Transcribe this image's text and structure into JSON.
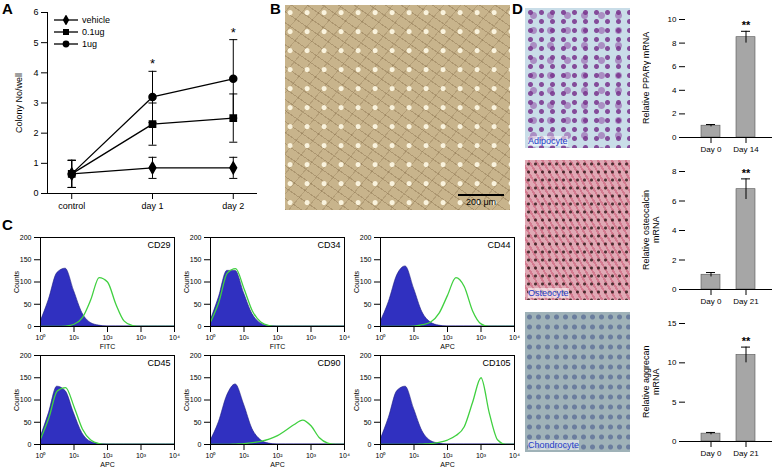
{
  "panel_labels": [
    "A",
    "B",
    "C",
    "D"
  ],
  "chart_data": [
    {
      "type": "line",
      "categories": [
        "control",
        "day 1",
        "day 2"
      ],
      "ylabel": "Colony No/well",
      "ylim": [
        0,
        6
      ],
      "yticks": [
        0,
        1,
        2,
        3,
        4,
        5,
        6
      ],
      "legend": "top-left",
      "series": [
        {
          "name": "vehicle",
          "color": "#000000",
          "marker": "diamond",
          "values": [
            0.65,
            0.85,
            0.85
          ],
          "errors": [
            0.45,
            0.35,
            0.35
          ]
        },
        {
          "name": "0.1ug",
          "color": "#000000",
          "marker": "square",
          "values": [
            0.65,
            2.3,
            2.5
          ],
          "errors": [
            0.45,
            0.7,
            0.8
          ]
        },
        {
          "name": "1ug",
          "color": "#000000",
          "marker": "circle",
          "values": [
            0.65,
            3.2,
            3.8
          ],
          "errors": [
            0.45,
            0.85,
            1.3
          ]
        }
      ],
      "annotations": [
        {
          "category": "day 1",
          "text": "*"
        },
        {
          "category": "day 2",
          "text": "*"
        }
      ]
    },
    {
      "type": "area",
      "title": "CD29",
      "xlabel": "FITC",
      "ylabel": "Counts",
      "log": "x",
      "x": [
        1,
        1.78,
        3.16,
        5.62,
        10,
        17.8,
        31.6,
        56.2,
        100,
        178,
        316,
        562,
        1000,
        1778,
        3162,
        5623,
        10000
      ],
      "xlim": [
        1,
        10000
      ],
      "xticks": [
        {
          "value": 1,
          "label": "10⁰"
        },
        {
          "value": 10,
          "label": "10¹"
        },
        {
          "value": 100,
          "label": "10²"
        },
        {
          "value": 1000,
          "label": "10³"
        },
        {
          "value": 10000,
          "label": "10⁴"
        }
      ],
      "ylim": [
        0,
        200
      ],
      "yticks": [
        0,
        50,
        100,
        150,
        200
      ],
      "series": [
        {
          "type": "area",
          "color": "#3030c0",
          "values": [
            10,
            60,
            120,
            130,
            80,
            30,
            8,
            2,
            0,
            0,
            0,
            0,
            0,
            0,
            0,
            0,
            0
          ]
        },
        {
          "type": "line",
          "color": "#40d040",
          "values": [
            0,
            0,
            0,
            1,
            5,
            20,
            60,
            110,
            100,
            50,
            12,
            2,
            0,
            0,
            0,
            0,
            0
          ]
        }
      ]
    },
    {
      "type": "area",
      "title": "CD34",
      "xlabel": "FITC",
      "ylabel": "Counts",
      "log": "x",
      "x": [
        1,
        1.78,
        3.16,
        5.62,
        10,
        17.8,
        31.6,
        56.2,
        100,
        178,
        316,
        562,
        1000,
        1778,
        3162,
        5623,
        10000
      ],
      "xlim": [
        1,
        10000
      ],
      "xticks": [
        {
          "value": 1,
          "label": "10⁰"
        },
        {
          "value": 10,
          "label": "10¹"
        },
        {
          "value": 100,
          "label": "10²"
        },
        {
          "value": 1000,
          "label": "10³"
        },
        {
          "value": 10000,
          "label": "10⁴"
        }
      ],
      "ylim": [
        0,
        200
      ],
      "yticks": [
        0,
        50,
        100,
        150,
        200
      ],
      "series": [
        {
          "type": "area",
          "color": "#3030c0",
          "values": [
            12,
            65,
            125,
            125,
            75,
            28,
            7,
            1,
            0,
            0,
            0,
            0,
            0,
            0,
            0,
            0,
            0
          ]
        },
        {
          "type": "line",
          "color": "#40d040",
          "values": [
            10,
            55,
            120,
            130,
            85,
            35,
            10,
            2,
            0,
            0,
            0,
            0,
            0,
            0,
            0,
            0,
            0
          ]
        }
      ]
    },
    {
      "type": "area",
      "title": "CD44",
      "xlabel": "APC",
      "ylabel": "Counts",
      "log": "x",
      "x": [
        1,
        1.78,
        3.16,
        5.62,
        10,
        17.8,
        31.6,
        56.2,
        100,
        178,
        316,
        562,
        1000,
        1778,
        3162,
        5623,
        10000
      ],
      "xlim": [
        1,
        10000
      ],
      "xticks": [
        {
          "value": 1,
          "label": "10⁰"
        },
        {
          "value": 10,
          "label": "10¹"
        },
        {
          "value": 100,
          "label": "10²"
        },
        {
          "value": 1000,
          "label": "10³"
        },
        {
          "value": 10000,
          "label": "10⁴"
        }
      ],
      "ylim": [
        0,
        200
      ],
      "yticks": [
        0,
        50,
        100,
        150,
        200
      ],
      "series": [
        {
          "type": "area",
          "color": "#3030c0",
          "values": [
            10,
            55,
            115,
            135,
            85,
            32,
            9,
            2,
            0,
            0,
            0,
            0,
            0,
            0,
            0,
            0,
            0
          ]
        },
        {
          "type": "line",
          "color": "#40d040",
          "values": [
            0,
            0,
            0,
            0,
            1,
            4,
            10,
            30,
            70,
            110,
            90,
            35,
            6,
            0,
            0,
            0,
            0
          ]
        }
      ]
    },
    {
      "type": "area",
      "title": "CD45",
      "xlabel": "APC",
      "ylabel": "Counts",
      "log": "x",
      "x": [
        1,
        1.78,
        3.16,
        5.62,
        10,
        17.8,
        31.6,
        56.2,
        100,
        178,
        316,
        562,
        1000,
        1778,
        3162,
        5623,
        10000
      ],
      "xlim": [
        1,
        10000
      ],
      "xticks": [
        {
          "value": 1,
          "label": "10⁰"
        },
        {
          "value": 10,
          "label": "10¹"
        },
        {
          "value": 100,
          "label": "10²"
        },
        {
          "value": 1000,
          "label": "10³"
        },
        {
          "value": 10000,
          "label": "10⁴"
        }
      ],
      "ylim": [
        0,
        200
      ],
      "yticks": [
        0,
        50,
        100,
        150,
        200
      ],
      "series": [
        {
          "type": "area",
          "color": "#3030c0",
          "values": [
            15,
            70,
            130,
            120,
            70,
            25,
            6,
            1,
            0,
            0,
            0,
            0,
            0,
            0,
            0,
            0,
            0
          ]
        },
        {
          "type": "line",
          "color": "#40d040",
          "values": [
            12,
            60,
            120,
            128,
            85,
            35,
            10,
            2,
            0,
            0,
            0,
            0,
            0,
            0,
            0,
            0,
            0
          ]
        }
      ]
    },
    {
      "type": "area",
      "title": "CD90",
      "xlabel": "APC",
      "ylabel": "Counts",
      "log": "x",
      "x": [
        1,
        1.78,
        3.16,
        5.62,
        10,
        17.8,
        31.6,
        56.2,
        100,
        178,
        316,
        562,
        1000,
        1778,
        3162,
        5623,
        10000
      ],
      "xlim": [
        1,
        10000
      ],
      "xticks": [
        {
          "value": 1,
          "label": "10⁰"
        },
        {
          "value": 10,
          "label": "10¹"
        },
        {
          "value": 100,
          "label": "10²"
        },
        {
          "value": 1000,
          "label": "10³"
        },
        {
          "value": 10000,
          "label": "10⁴"
        }
      ],
      "ylim": [
        0,
        200
      ],
      "yticks": [
        0,
        50,
        100,
        150,
        200
      ],
      "series": [
        {
          "type": "area",
          "color": "#3030c0",
          "values": [
            8,
            50,
            110,
            135,
            90,
            35,
            10,
            2,
            0,
            0,
            0,
            0,
            0,
            0,
            0,
            0,
            0
          ]
        },
        {
          "type": "line",
          "color": "#40d040",
          "values": [
            0,
            0,
            0,
            1,
            2,
            4,
            7,
            12,
            20,
            32,
            45,
            55,
            42,
            15,
            3,
            0,
            0
          ]
        }
      ]
    },
    {
      "type": "area",
      "title": "CD105",
      "xlabel": "APC",
      "ylabel": "Counts",
      "log": "x",
      "x": [
        1,
        1.78,
        3.16,
        5.62,
        10,
        17.8,
        31.6,
        56.2,
        100,
        178,
        316,
        562,
        1000,
        1778,
        3162,
        5623,
        10000
      ],
      "xlim": [
        1,
        10000
      ],
      "xticks": [
        {
          "value": 1,
          "label": "10⁰"
        },
        {
          "value": 10,
          "label": "10¹"
        },
        {
          "value": 100,
          "label": "10²"
        },
        {
          "value": 1000,
          "label": "10³"
        },
        {
          "value": 10000,
          "label": "10⁴"
        }
      ],
      "ylim": [
        0,
        200
      ],
      "yticks": [
        0,
        50,
        100,
        150,
        200
      ],
      "series": [
        {
          "type": "area",
          "color": "#3030c0",
          "values": [
            10,
            60,
            120,
            130,
            80,
            30,
            8,
            2,
            0,
            0,
            0,
            0,
            0,
            0,
            0,
            0,
            0
          ]
        },
        {
          "type": "line",
          "color": "#40d040",
          "values": [
            0,
            0,
            0,
            0,
            0,
            1,
            2,
            5,
            10,
            20,
            40,
            95,
            150,
            70,
            10,
            0,
            0
          ]
        }
      ]
    },
    {
      "type": "bar",
      "categories": [
        "Day 0",
        "Day 14"
      ],
      "ylabel": "Relative PPARγ mRNA",
      "ylim": [
        0,
        10
      ],
      "yticks": [
        0,
        2,
        4,
        6,
        8,
        10
      ],
      "color": "#a6a6a6",
      "values": [
        1,
        8.5
      ],
      "errors": [
        0.1,
        0.5
      ],
      "annotations": [
        {
          "category": "Day 14",
          "text": "**"
        }
      ]
    },
    {
      "type": "bar",
      "categories": [
        "Day 0",
        "Day 21"
      ],
      "ylabel": "Relative osteocalcin mRNA",
      "ylim": [
        0,
        8
      ],
      "yticks": [
        0,
        2,
        4,
        6,
        8
      ],
      "color": "#a6a6a6",
      "values": [
        1,
        6.8
      ],
      "errors": [
        0.15,
        0.7
      ],
      "annotations": [
        {
          "category": "Day 21",
          "text": "**"
        }
      ]
    },
    {
      "type": "bar",
      "categories": [
        "Day 0",
        "Day 21"
      ],
      "ylabel": "Relative aggrecan mRNA",
      "ylim": [
        0,
        15
      ],
      "yticks": [
        0,
        5,
        10,
        15
      ],
      "color": "#a6a6a6",
      "values": [
        1,
        11
      ],
      "errors": [
        0.15,
        1
      ],
      "annotations": [
        {
          "category": "Day 21",
          "text": "**"
        }
      ]
    }
  ],
  "images": [
    {
      "scale_bar": "200 μm"
    },
    {
      "label": "Adipocyte"
    },
    {
      "label": "Osteocyte"
    },
    {
      "label": "Chondrocyte"
    }
  ]
}
